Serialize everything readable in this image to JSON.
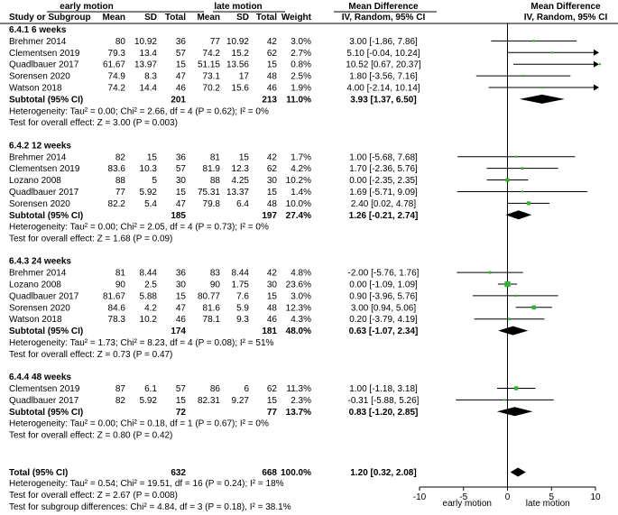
{
  "chart_data": {
    "type": "forest",
    "axis": {
      "xlim": [
        -10,
        10
      ],
      "ticks": [
        "-10",
        "-5",
        "0",
        "5",
        "10"
      ],
      "left_label": "early motion",
      "right_label": "late motion"
    },
    "header": {
      "group1": "early motion",
      "group2": "late motion",
      "effect": "Mean Difference",
      "study": "Study or Subgroup",
      "mean": "Mean",
      "sd": "SD",
      "total": "Total",
      "weight": "Weight",
      "iv": "IV, Random, 95% CI"
    },
    "subgroups": [
      {
        "title": "6.4.1 6 weeks",
        "studies": [
          {
            "name": "Brehmer 2014",
            "m1": "80",
            "sd1": "10.92",
            "n1": "36",
            "m2": "77",
            "sd2": "10.92",
            "n2": "42",
            "weight": "3.0%",
            "ci_text": "3.00 [-1.86, 7.86]",
            "est": 3.0,
            "lo": -1.86,
            "hi": 7.86,
            "w": 3.0
          },
          {
            "name": "Clementsen 2019",
            "m1": "79.3",
            "sd1": "13.4",
            "n1": "57",
            "m2": "74.2",
            "sd2": "15.2",
            "n2": "62",
            "weight": "2.7%",
            "ci_text": "5.10 [-0.04, 10.24]",
            "est": 5.1,
            "lo": -0.04,
            "hi": 10.24,
            "w": 2.7
          },
          {
            "name": "Quadlbauer 2017",
            "m1": "61.67",
            "sd1": "13.97",
            "n1": "15",
            "m2": "51.15",
            "sd2": "13.56",
            "n2": "15",
            "weight": "0.8%",
            "ci_text": "10.52 [0.67, 20.37]",
            "est": 10.52,
            "lo": 0.67,
            "hi": 20.37,
            "w": 0.8
          },
          {
            "name": "Sorensen 2020",
            "m1": "74.9",
            "sd1": "8.3",
            "n1": "47",
            "m2": "73.1",
            "sd2": "17",
            "n2": "48",
            "weight": "2.5%",
            "ci_text": "1.80 [-3.56, 7.16]",
            "est": 1.8,
            "lo": -3.56,
            "hi": 7.16,
            "w": 2.5
          },
          {
            "name": "Watson 2018",
            "m1": "74.2",
            "sd1": "14.4",
            "n1": "46",
            "m2": "70.2",
            "sd2": "15.6",
            "n2": "46",
            "weight": "1.9%",
            "ci_text": "4.00 [-2.14, 10.14]",
            "est": 4.0,
            "lo": -2.14,
            "hi": 10.14,
            "w": 1.9
          }
        ],
        "subtotal": {
          "label": "Subtotal (95% CI)",
          "n1": "201",
          "n2": "213",
          "weight": "11.0%",
          "ci_text": "3.93 [1.37, 6.50]",
          "est": 3.93,
          "lo": 1.37,
          "hi": 6.5
        },
        "heterogeneity": "Heterogeneity: Tau² = 0.00; Chi² = 2.66, df = 4 (P = 0.62); I² = 0%",
        "overall": "Test for overall effect: Z = 3.00 (P = 0.003)"
      },
      {
        "title": "6.4.2 12 weeks",
        "studies": [
          {
            "name": "Brehmer 2014",
            "m1": "82",
            "sd1": "15",
            "n1": "36",
            "m2": "81",
            "sd2": "15",
            "n2": "42",
            "weight": "1.7%",
            "ci_text": "1.00 [-5.68, 7.68]",
            "est": 1.0,
            "lo": -5.68,
            "hi": 7.68,
            "w": 1.7
          },
          {
            "name": "Clementsen 2019",
            "m1": "83.6",
            "sd1": "10.3",
            "n1": "57",
            "m2": "81.9",
            "sd2": "12.3",
            "n2": "62",
            "weight": "4.2%",
            "ci_text": "1.70 [-2.36, 5.76]",
            "est": 1.7,
            "lo": -2.36,
            "hi": 5.76,
            "w": 4.2
          },
          {
            "name": "Lozano 2008",
            "m1": "88",
            "sd1": "5",
            "n1": "30",
            "m2": "88",
            "sd2": "4.25",
            "n2": "30",
            "weight": "10.2%",
            "ci_text": "0.00 [-2.35, 2.35]",
            "est": 0.0,
            "lo": -2.35,
            "hi": 2.35,
            "w": 10.2
          },
          {
            "name": "Quadlbauer 2017",
            "m1": "77",
            "sd1": "5.92",
            "n1": "15",
            "m2": "75.31",
            "sd2": "13.37",
            "n2": "15",
            "weight": "1.4%",
            "ci_text": "1.69 [-5.71, 9.09]",
            "est": 1.69,
            "lo": -5.71,
            "hi": 9.09,
            "w": 1.4
          },
          {
            "name": "Sorensen 2020",
            "m1": "82.2",
            "sd1": "5.4",
            "n1": "47",
            "m2": "79.8",
            "sd2": "6.4",
            "n2": "48",
            "weight": "10.0%",
            "ci_text": "2.40 [0.02, 4.78]",
            "est": 2.4,
            "lo": 0.02,
            "hi": 4.78,
            "w": 10.0
          }
        ],
        "subtotal": {
          "label": "Subtotal (95% CI)",
          "n1": "185",
          "n2": "197",
          "weight": "27.4%",
          "ci_text": "1.26 [-0.21, 2.74]",
          "est": 1.26,
          "lo": -0.21,
          "hi": 2.74
        },
        "heterogeneity": "Heterogeneity: Tau² = 0.00; Chi² = 2.05, df = 4 (P = 0.73); I² = 0%",
        "overall": "Test for overall effect: Z = 1.68 (P = 0.09)"
      },
      {
        "title": "6.4.3 24 weeks",
        "studies": [
          {
            "name": "Brehmer 2014",
            "m1": "81",
            "sd1": "8.44",
            "n1": "36",
            "m2": "83",
            "sd2": "8.44",
            "n2": "42",
            "weight": "4.8%",
            "ci_text": "-2.00 [-5.76, 1.76]",
            "est": -2.0,
            "lo": -5.76,
            "hi": 1.76,
            "w": 4.8
          },
          {
            "name": "Lozano 2008",
            "m1": "90",
            "sd1": "2.5",
            "n1": "30",
            "m2": "90",
            "sd2": "1.75",
            "n2": "30",
            "weight": "23.6%",
            "ci_text": "0.00 [-1.09, 1.09]",
            "est": 0.0,
            "lo": -1.09,
            "hi": 1.09,
            "w": 23.6
          },
          {
            "name": "Quadlbauer 2017",
            "m1": "81.67",
            "sd1": "5.88",
            "n1": "15",
            "m2": "80.77",
            "sd2": "7.6",
            "n2": "15",
            "weight": "3.0%",
            "ci_text": "0.90 [-3.96, 5.76]",
            "est": 0.9,
            "lo": -3.96,
            "hi": 5.76,
            "w": 3.0
          },
          {
            "name": "Sorensen 2020",
            "m1": "84.6",
            "sd1": "4.2",
            "n1": "47",
            "m2": "81.6",
            "sd2": "5.9",
            "n2": "48",
            "weight": "12.3%",
            "ci_text": "3.00 [0.94, 5.06]",
            "est": 3.0,
            "lo": 0.94,
            "hi": 5.06,
            "w": 12.3
          },
          {
            "name": "Watson 2018",
            "m1": "78.3",
            "sd1": "10.2",
            "n1": "46",
            "m2": "78.1",
            "sd2": "9.3",
            "n2": "46",
            "weight": "4.3%",
            "ci_text": "0.20 [-3.79, 4.19]",
            "est": 0.2,
            "lo": -3.79,
            "hi": 4.19,
            "w": 4.3
          }
        ],
        "subtotal": {
          "label": "Subtotal (95% CI)",
          "n1": "174",
          "n2": "181",
          "weight": "48.0%",
          "ci_text": "0.63 [-1.07, 2.34]",
          "est": 0.63,
          "lo": -1.07,
          "hi": 2.34
        },
        "heterogeneity": "Heterogeneity: Tau² = 1.73; Chi² = 8.23, df = 4 (P = 0.08); I² = 51%",
        "overall": "Test for overall effect: Z = 0.73 (P = 0.47)"
      },
      {
        "title": "6.4.4 48 weeks",
        "studies": [
          {
            "name": "Clementsen 2019",
            "m1": "87",
            "sd1": "6.1",
            "n1": "57",
            "m2": "86",
            "sd2": "6",
            "n2": "62",
            "weight": "11.3%",
            "ci_text": "1.00 [-1.18, 3.18]",
            "est": 1.0,
            "lo": -1.18,
            "hi": 3.18,
            "w": 11.3
          },
          {
            "name": "Quadlbauer 2017",
            "m1": "82",
            "sd1": "5.92",
            "n1": "15",
            "m2": "82.31",
            "sd2": "9.27",
            "n2": "15",
            "weight": "2.3%",
            "ci_text": "-0.31 [-5.88, 5.26]",
            "est": -0.31,
            "lo": -5.88,
            "hi": 5.26,
            "w": 2.3
          }
        ],
        "subtotal": {
          "label": "Subtotal (95% CI)",
          "n1": "72",
          "n2": "77",
          "weight": "13.7%",
          "ci_text": "0.83 [-1.20, 2.85]",
          "est": 0.83,
          "lo": -1.2,
          "hi": 2.85
        },
        "heterogeneity": "Heterogeneity: Tau² = 0.00; Chi² = 0.18, df = 1 (P = 0.67); I² = 0%",
        "overall": "Test for overall effect: Z = 0.80 (P = 0.42)"
      }
    ],
    "total": {
      "label": "Total (95% CI)",
      "n1": "632",
      "n2": "668",
      "weight": "100.0%",
      "ci_text": "1.20 [0.32, 2.08]",
      "est": 1.2,
      "lo": 0.32,
      "hi": 2.08
    },
    "footer": [
      "Heterogeneity: Tau² = 0.54; Chi² = 19.51, df = 16 (P = 0.24); I² = 18%",
      "Test for overall effect: Z = 2.67 (P = 0.008)",
      "Test for subgroup differences: Chi² = 4.84, df = 3 (P = 0.18), I² = 38.1%"
    ],
    "colors": {
      "marker": "#2db52d",
      "diamond": "#000000",
      "line": "#000000"
    }
  }
}
